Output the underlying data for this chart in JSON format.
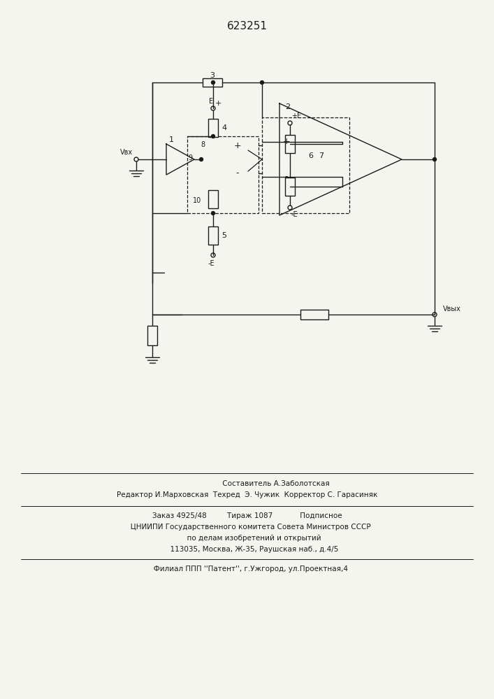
{
  "title": "623251",
  "bg_color": "#f5f5f0",
  "line_color": "#1a1a1a",
  "footer_line1": "                         Составитель А.Заболотская",
  "footer_line2": "Редактор И.Марховская  Техред  Э. Чужик  Корректор С. Гарасиняк",
  "footer_line3": "Заказ 4925/48         Тираж 1087            Подписное",
  "footer_line4": "   ЦНИИПИ Государственного комитета Совета Министров СССР",
  "footer_line5": "      по делам изобретений и открытий",
  "footer_line6": "      113035, Москва, Ж-35, Раушская наб., д.4/5",
  "footer_line7": "   Филиал ППП ''Патент'', г.Ужгород, ул.Проектная,4"
}
